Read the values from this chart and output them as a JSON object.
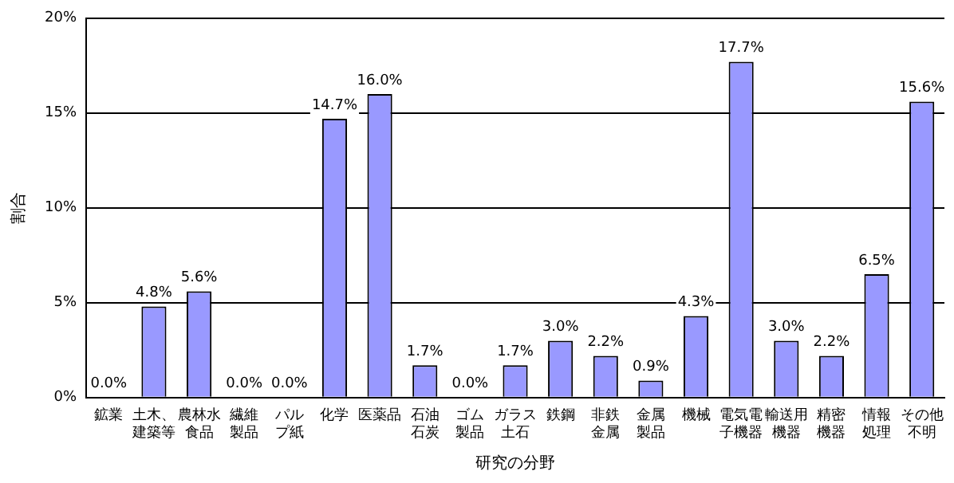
{
  "chart_data": {
    "type": "bar",
    "xlabel": "研究の分野",
    "ylabel": "割合",
    "categories": [
      "鉱業",
      "土木、建築等",
      "農林水食品",
      "繊維製品",
      "パルプ紙",
      "化学",
      "医薬品",
      "石油石炭",
      "ゴム製品",
      "ガラス土石",
      "鉄鋼",
      "非鉄金属",
      "金属製品",
      "機械",
      "電気電子機器",
      "輸送用機器",
      "精密機器",
      "情報処理",
      "その他不明"
    ],
    "values": [
      0,
      4.8,
      5.6,
      0,
      0,
      14.7,
      16.0,
      1.7,
      0,
      1.7,
      3.0,
      2.2,
      0.9,
      4.3,
      17.7,
      3.0,
      2.2,
      6.5,
      15.6
    ],
    "value_labels": [
      "0.0%",
      "4.8%",
      "5.6%",
      "0.0%",
      "0.0%",
      "14.7%",
      "16.0%",
      "1.7%",
      "0.0%",
      "1.7%",
      "3.0%",
      "2.2%",
      "0.9%",
      "4.3%",
      "17.7%",
      "3.0%",
      "2.2%",
      "6.5%",
      "15.6%"
    ],
    "color": "#9999ff",
    "ylim": [
      0,
      20
    ],
    "yticks": [
      {
        "value": 0,
        "label": "0%"
      },
      {
        "value": 5,
        "label": "5%"
      },
      {
        "value": 10,
        "label": "10%"
      },
      {
        "value": 15,
        "label": "15%"
      },
      {
        "value": 20,
        "label": "20%"
      }
    ],
    "grid": "y",
    "legend": false
  }
}
